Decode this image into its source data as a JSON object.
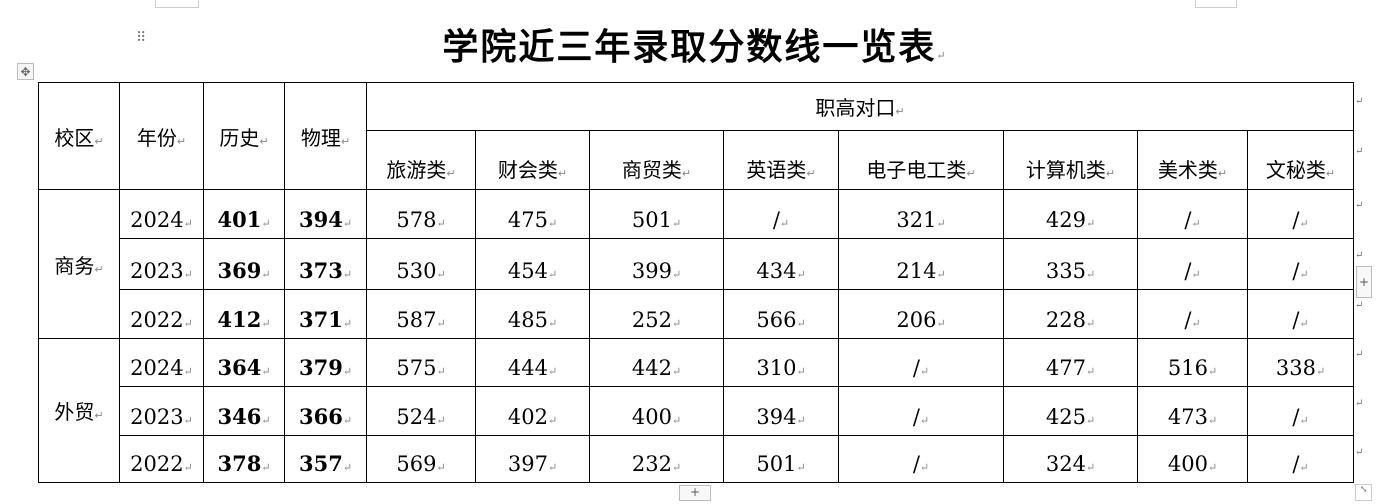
{
  "title": "学院近三年录取分数线一览表",
  "paragraph_mark": "↵",
  "header": {
    "campus": "校区",
    "year": "年份",
    "history": "历史",
    "physics": "物理",
    "vocational_group": "职高对口",
    "vocational_categories": [
      "旅游类",
      "财会类",
      "商贸类",
      "英语类",
      "电子电工类",
      "计算机类",
      "美术类",
      "文秘类"
    ]
  },
  "campuses": [
    {
      "name": "商务",
      "rows": [
        {
          "year": "2024",
          "history": "401",
          "physics": "394",
          "scores": [
            "578",
            "475",
            "501",
            "/",
            "321",
            "429",
            "/",
            "/"
          ]
        },
        {
          "year": "2023",
          "history": "369",
          "physics": "373",
          "scores": [
            "530",
            "454",
            "399",
            "434",
            "214",
            "335",
            "/",
            "/"
          ]
        },
        {
          "year": "2022",
          "history": "412",
          "physics": "371",
          "scores": [
            "587",
            "485",
            "252",
            "566",
            "206",
            "228",
            "/",
            "/"
          ]
        }
      ]
    },
    {
      "name": "外贸",
      "rows": [
        {
          "year": "2024",
          "history": "364",
          "physics": "379",
          "scores": [
            "575",
            "444",
            "442",
            "310",
            "/",
            "477",
            "516",
            "338"
          ]
        },
        {
          "year": "2023",
          "history": "346",
          "physics": "366",
          "scores": [
            "524",
            "402",
            "400",
            "394",
            "/",
            "425",
            "473",
            "/"
          ]
        },
        {
          "year": "2022",
          "history": "378",
          "physics": "357",
          "scores": [
            "569",
            "397",
            "232",
            "501",
            "/",
            "324",
            "400",
            "/"
          ]
        }
      ]
    }
  ],
  "controls": {
    "add_symbol": "+",
    "move_symbol": "✥",
    "grip_symbol": "⠿",
    "resize_symbol": "⤡"
  }
}
